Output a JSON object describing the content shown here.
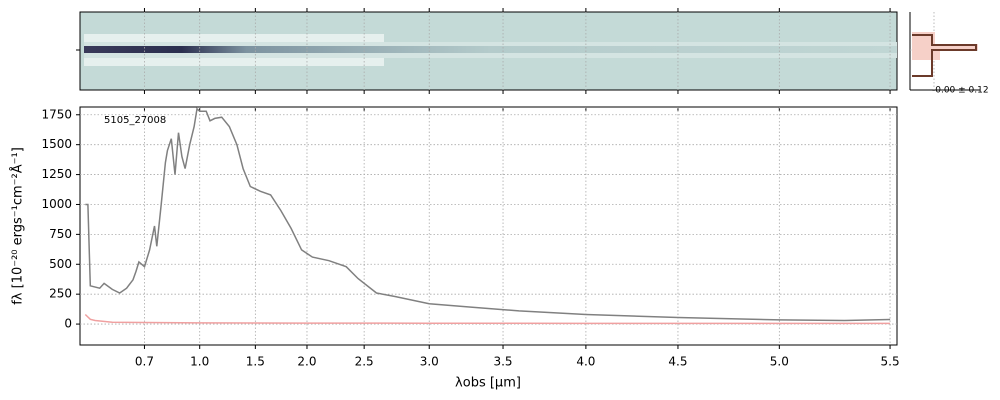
{
  "chart_data": {
    "type": "line",
    "annotation": "5105_27008",
    "xlabel": "λobs [μm]",
    "ylabel": "fλ [10⁻²⁰ ergs⁻¹cm⁻²Å⁻¹]",
    "inset_label": "-0.00 ± 0.12",
    "xscale": "prism",
    "xlim": [
      0.53,
      5.53
    ],
    "xticks": [
      0.7,
      {
        "value": 1.0,
        "label": "1.0"
      },
      1.5,
      {
        "value": 2.0,
        "label": "2.0"
      },
      2.5,
      {
        "value": 3.0,
        "label": "3.0"
      },
      3.5,
      {
        "value": 4.0,
        "label": "4.0"
      },
      4.5,
      {
        "value": 5.0,
        "label": "5.0"
      },
      5.5
    ],
    "ylim": [
      -175,
      1815
    ],
    "yticks": [
      0,
      250,
      500,
      750,
      1000,
      1250,
      1500,
      1750
    ],
    "grid": true,
    "series": [
      {
        "color": "#808080",
        "x": [
          0.54,
          0.545,
          0.55,
          0.57,
          0.58,
          0.6,
          0.62,
          0.64,
          0.66,
          0.67,
          0.68,
          0.7,
          0.72,
          0.74,
          0.75,
          0.77,
          0.79,
          0.8,
          0.82,
          0.84,
          0.86,
          0.88,
          0.9,
          0.93,
          0.96,
          0.98,
          1.0,
          1.05,
          1.08,
          1.12,
          1.18,
          1.25,
          1.32,
          1.38,
          1.45,
          1.55,
          1.65,
          1.75,
          1.85,
          1.95,
          2.05,
          2.2,
          2.35,
          2.45,
          2.6,
          2.75,
          3.0,
          3.3,
          3.6,
          4.0,
          4.5,
          5.0,
          5.3,
          5.5
        ],
        "values": [
          1000,
          1000,
          320,
          300,
          340,
          290,
          260,
          300,
          370,
          440,
          520,
          480,
          620,
          820,
          650,
          1000,
          1350,
          1450,
          1550,
          1250,
          1600,
          1400,
          1300,
          1500,
          1650,
          1800,
          1780,
          1780,
          1700,
          1720,
          1730,
          1650,
          1500,
          1300,
          1150,
          1110,
          1080,
          950,
          800,
          620,
          560,
          530,
          480,
          380,
          260,
          230,
          170,
          140,
          110,
          80,
          55,
          35,
          30,
          38
        ]
      },
      {
        "color": "#f0a0a0",
        "x": [
          0.54,
          0.55,
          0.56,
          0.6,
          1.0,
          2.0,
          3.0,
          4.0,
          5.5
        ],
        "values": [
          80,
          40,
          30,
          15,
          10,
          8,
          7,
          6,
          6
        ]
      }
    ]
  }
}
